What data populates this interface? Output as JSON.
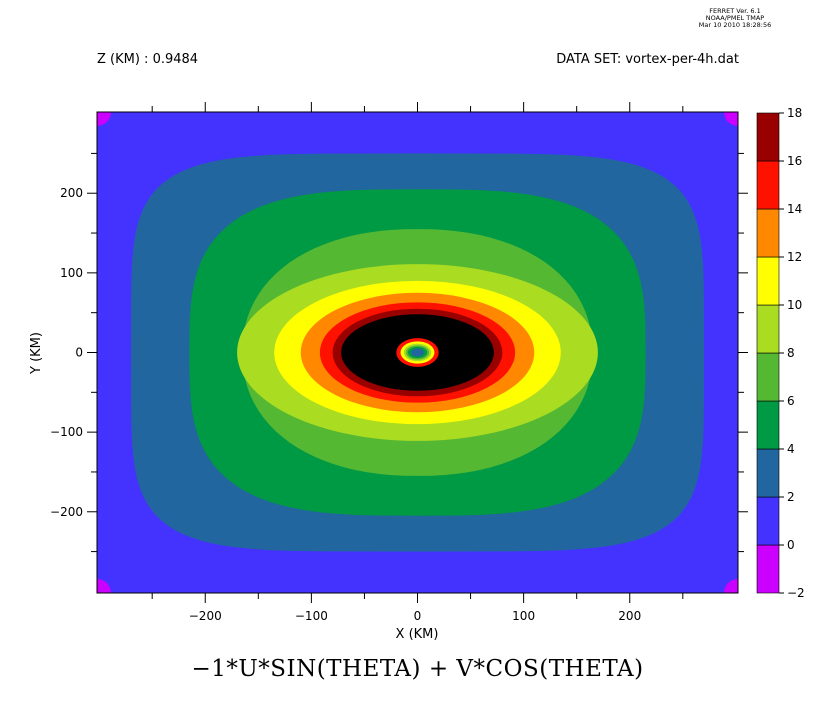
{
  "header": {
    "info_line1": "FERRET Ver. 6.1",
    "info_line2": "NOAA/PMEL TMAP",
    "info_line3": "Mar 10 2010 18:28:56",
    "z_label": "Z (KM) : 0.9484",
    "dataset_label": "DATA SET: vortex-per-4h.dat"
  },
  "chart_data": {
    "type": "heatmap",
    "title": "−1*U*SIN(THETA)  +  V*COS(THETA)",
    "xlabel": "X (KM)",
    "ylabel": "Y (KM)",
    "xlim": [
      -302,
      302
    ],
    "ylim": [
      -302,
      302
    ],
    "x_ticks": [
      -200,
      -100,
      0,
      100,
      200
    ],
    "y_ticks": [
      200,
      100,
      0,
      -100,
      -200
    ],
    "x_tick_labels": [
      "−200",
      "−100",
      "0",
      "100",
      "200"
    ],
    "y_tick_labels": [
      "200",
      "100",
      "0",
      "−100",
      "−200"
    ],
    "colorbar": {
      "levels": [
        -2,
        0,
        2,
        4,
        6,
        8,
        10,
        12,
        14,
        16,
        18
      ],
      "level_labels": [
        "−2",
        "0",
        "2",
        "4",
        "6",
        "8",
        "10",
        "12",
        "14",
        "16",
        "18"
      ],
      "colors": [
        "#cc00ff",
        "#4433ff",
        "#2266a0",
        "#009944",
        "#55b833",
        "#aadd22",
        "#ffff00",
        "#ff8800",
        "#ff1100",
        "#990000"
      ]
    },
    "contour_bands": [
      {
        "min": 0,
        "max": 2,
        "half_width": 270,
        "half_height": 250
      },
      {
        "min": 2,
        "max": 4,
        "half_width": 215,
        "half_height": 205
      },
      {
        "min": 4,
        "max": 6,
        "half_width": 165,
        "half_height": 155
      },
      {
        "min": 6,
        "max": 8,
        "half_width": 170,
        "half_height": 111
      },
      {
        "min": 8,
        "max": 10,
        "half_width": 135,
        "half_height": 90
      },
      {
        "min": 10,
        "max": 12,
        "half_width": 110,
        "half_height": 75
      },
      {
        "min": 12,
        "max": 14,
        "half_width": 92,
        "half_height": 63
      },
      {
        "min": 14,
        "max": 16,
        "half_width": 80,
        "half_height": 55
      },
      {
        "min": 16,
        "max": 18,
        "half_width": 72,
        "half_height": 48
      },
      {
        "min": 14,
        "max": 16,
        "half_width": 20,
        "half_height": 18
      },
      {
        "min": 10,
        "max": 12,
        "half_width": 16,
        "half_height": 14
      },
      {
        "min": 8,
        "max": 10,
        "half_width": 13,
        "half_height": 11
      },
      {
        "min": 6,
        "max": 8,
        "half_width": 11,
        "half_height": 9
      },
      {
        "min": 4,
        "max": 6,
        "half_width": 9,
        "half_height": 7
      },
      {
        "min": 2,
        "max": 4,
        "half_width": 6,
        "half_height": 5
      }
    ],
    "center": [
      0,
      0
    ]
  }
}
